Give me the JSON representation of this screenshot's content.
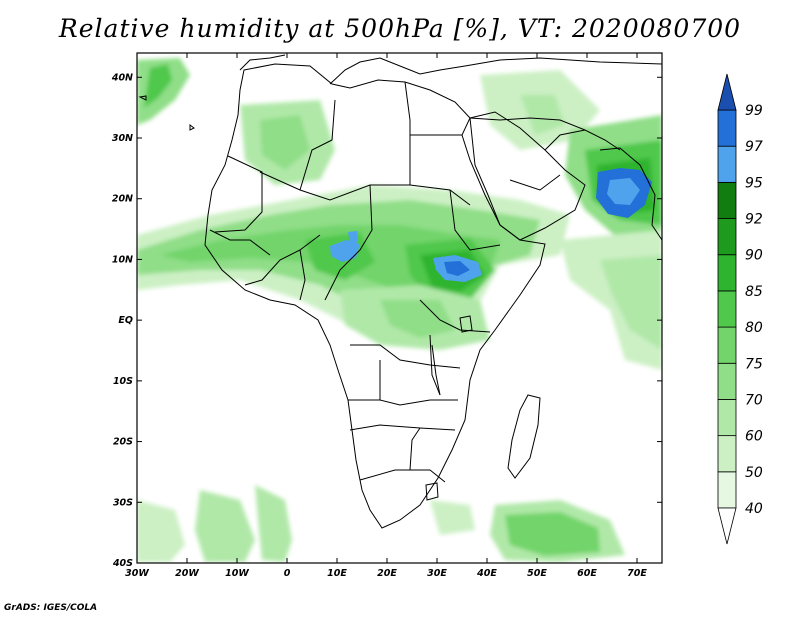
{
  "title": "Relative humidity at 500hPa [%], VT: 2020080700",
  "credit": "GrADS: IGES/COLA",
  "chart_data": {
    "type": "heatmap",
    "title": "Relative humidity at 500hPa [%], VT: 2020080700",
    "variable": "Relative humidity",
    "level": "500hPa",
    "units": "%",
    "valid_time": "2020080700",
    "lon_range": [
      -30,
      75
    ],
    "lat_range": [
      -40,
      44
    ],
    "x_ticks": [
      "30W",
      "20W",
      "10W",
      "0",
      "10E",
      "20E",
      "30E",
      "40E",
      "50E",
      "60E",
      "70E"
    ],
    "x_tick_values": [
      -30,
      -20,
      -10,
      0,
      10,
      20,
      30,
      40,
      50,
      60,
      70
    ],
    "y_ticks": [
      "40S",
      "30S",
      "20S",
      "10S",
      "EQ",
      "10N",
      "20N",
      "30N",
      "40N"
    ],
    "y_tick_values": [
      -40,
      -30,
      -20,
      -10,
      0,
      10,
      20,
      30,
      40
    ],
    "colorbar": {
      "levels": [
        40,
        50,
        60,
        70,
        75,
        80,
        85,
        90,
        92,
        95,
        97,
        99
      ],
      "labels": [
        "40",
        "50",
        "60",
        "70",
        "75",
        "80",
        "85",
        "90",
        "92",
        "95",
        "97",
        "99"
      ],
      "colors": [
        "#ffffff",
        "#e6f8e2",
        "#ccf0c4",
        "#b0e8a8",
        "#90de88",
        "#72d46a",
        "#50c84c",
        "#2fb42f",
        "#1e9a1e",
        "#117d11",
        "#4fa3ec",
        "#2270d8",
        "#1a4fb0"
      ]
    }
  }
}
